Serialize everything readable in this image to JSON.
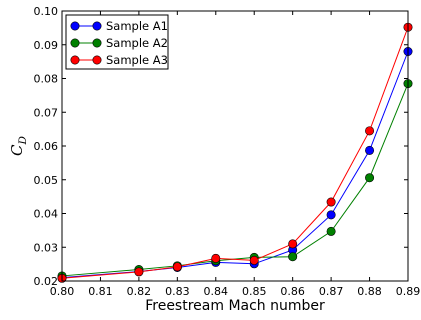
{
  "chart_data": {
    "type": "line",
    "title": "",
    "xlabel": "Freestream Mach number",
    "ylabel": "C",
    "ylabel_subscript": "D",
    "xlim": [
      0.8,
      0.89
    ],
    "ylim": [
      0.02,
      0.1
    ],
    "xticks": [
      "0.80",
      "0.81",
      "0.82",
      "0.83",
      "0.84",
      "0.85",
      "0.86",
      "0.87",
      "0.88",
      "0.89"
    ],
    "yticks": [
      "0.02",
      "0.03",
      "0.04",
      "0.05",
      "0.06",
      "0.07",
      "0.08",
      "0.09",
      "0.10"
    ],
    "grid": false,
    "legend_position": "top-left",
    "x": [
      0.8,
      0.82,
      0.83,
      0.84,
      0.85,
      0.86,
      0.87,
      0.88,
      0.89
    ],
    "series": [
      {
        "name": "Sample A1",
        "color": "#0000ff",
        "values": [
          0.021,
          0.0228,
          0.024,
          0.0255,
          0.0251,
          0.0292,
          0.0396,
          0.0587,
          0.088
        ]
      },
      {
        "name": "Sample A2",
        "color": "#008000",
        "values": [
          0.0215,
          0.0234,
          0.0245,
          0.026,
          0.027,
          0.0272,
          0.0347,
          0.0506,
          0.0785
        ]
      },
      {
        "name": "Sample A3",
        "color": "#ff0000",
        "values": [
          0.0208,
          0.0227,
          0.0242,
          0.0267,
          0.0261,
          0.031,
          0.0434,
          0.0645,
          0.0952
        ]
      }
    ]
  }
}
